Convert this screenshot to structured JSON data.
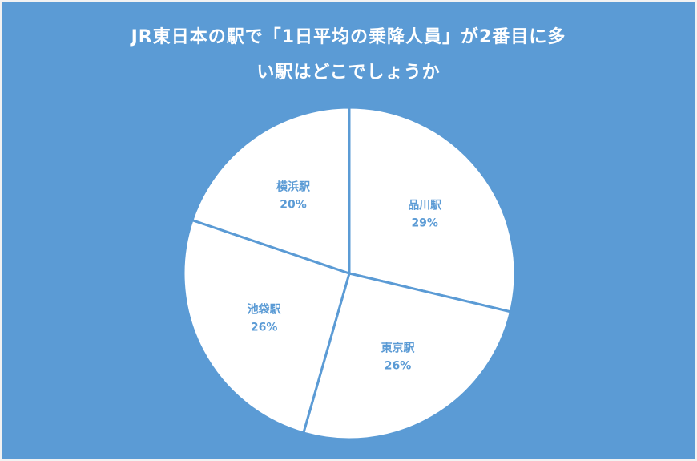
{
  "chart_data": {
    "type": "pie",
    "title_lines": [
      "JR東日本の駅で「1日平均の乗降人員」が2番目に多",
      "い駅はどこでしょうか"
    ],
    "slices": [
      {
        "label": "品川駅",
        "percent_label": "29%",
        "value": 29
      },
      {
        "label": "東京駅",
        "percent_label": "26%",
        "value": 26
      },
      {
        "label": "池袋駅",
        "percent_label": "26%",
        "value": 26
      },
      {
        "label": "横浜駅",
        "percent_label": "20%",
        "value": 20
      }
    ],
    "legend": "none"
  },
  "colors": {
    "background": "#5b9bd5",
    "slice_fill": "#ffffff",
    "slice_stroke": "#5b9bd5",
    "label": "#5b9bd5"
  }
}
